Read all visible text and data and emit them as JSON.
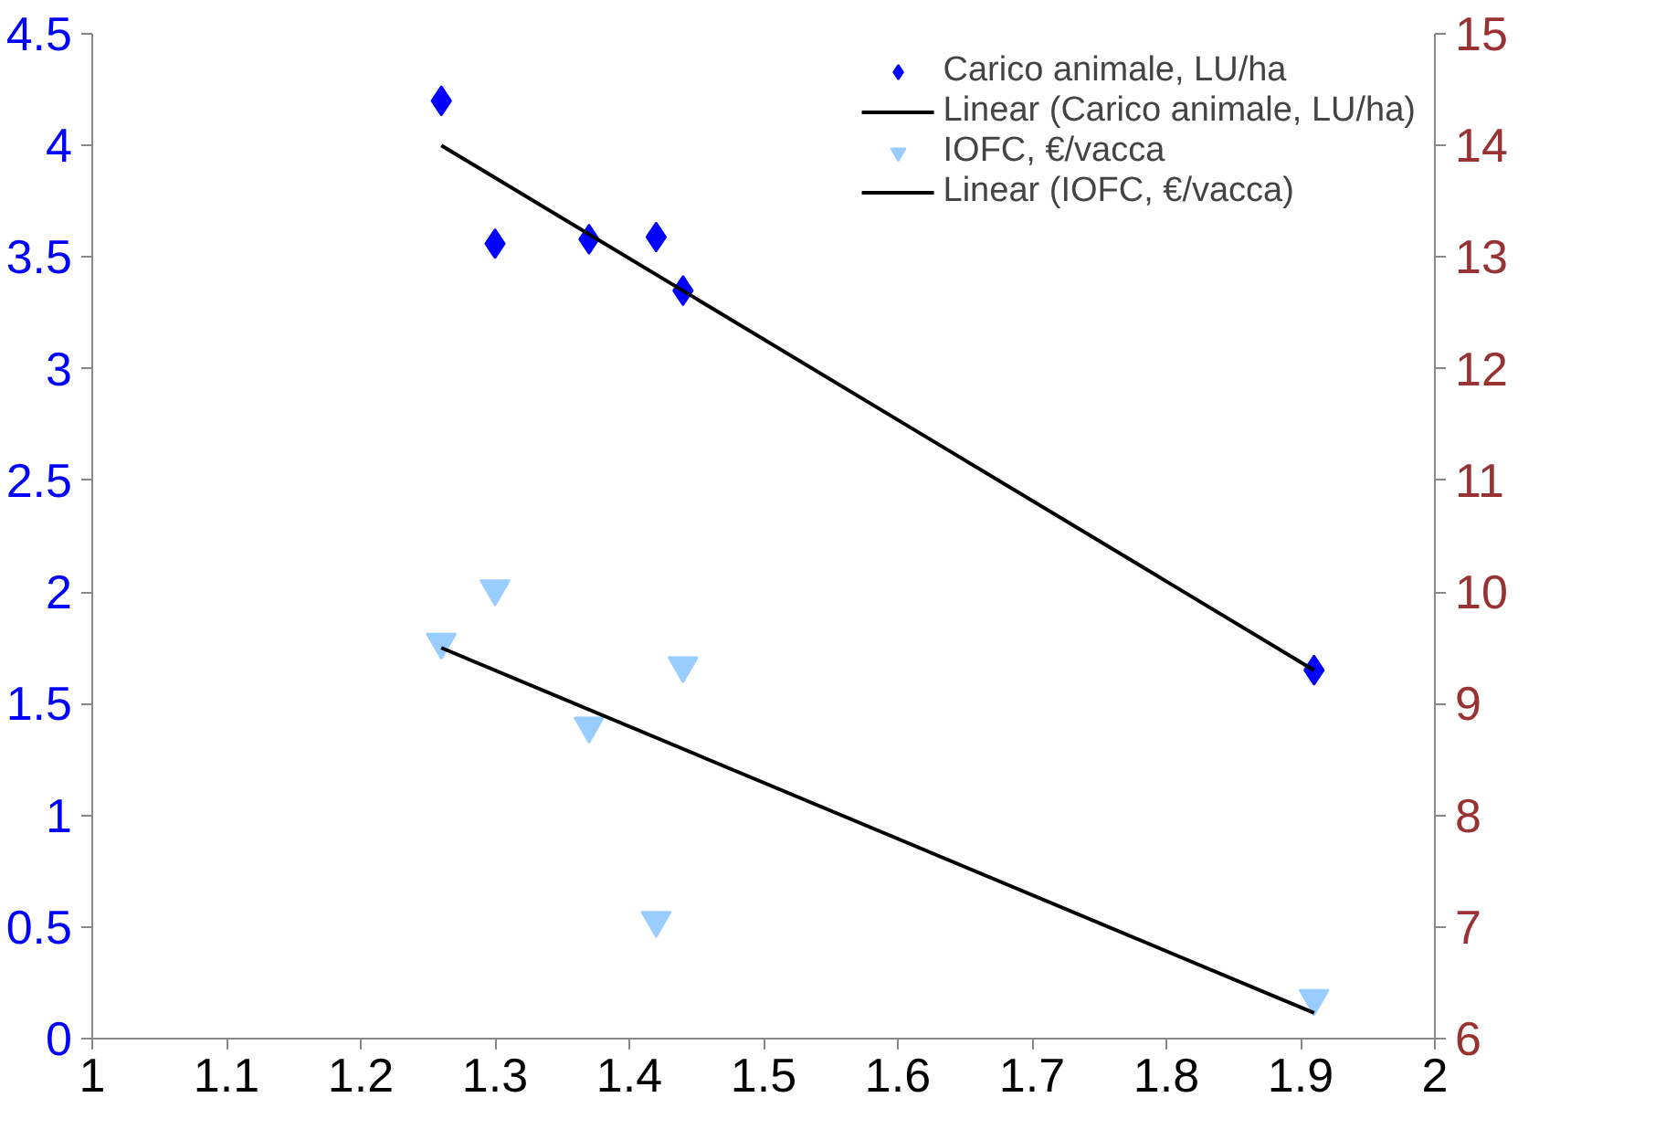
{
  "chart_data": {
    "type": "scatter",
    "xlim": [
      1,
      2
    ],
    "xticks": [
      1,
      1.1,
      1.2,
      1.3,
      1.4,
      1.5,
      1.6,
      1.7,
      1.8,
      1.9,
      2
    ],
    "ylim": [
      0,
      4.5
    ],
    "yticks": [
      0,
      0.5,
      1,
      1.5,
      2,
      2.5,
      3,
      3.5,
      4,
      4.5
    ],
    "y2lim": [
      6,
      15
    ],
    "y2ticks": [
      6,
      7,
      8,
      9,
      10,
      11,
      12,
      13,
      14,
      15
    ],
    "grid": false,
    "legend": "top right",
    "series": [
      {
        "name": "Carico animale, LU/ha",
        "marker": "diamond",
        "color": "#0000ff",
        "x": [
          1.26,
          1.3,
          1.37,
          1.42,
          1.44,
          1.91
        ],
        "values": [
          4.2,
          3.56,
          3.58,
          3.59,
          3.35,
          1.65
        ]
      },
      {
        "name": "Linear (Carico animale, LU/ha)",
        "type": "line",
        "color": "#000000",
        "x": [
          1.26,
          1.91
        ],
        "values": [
          4.0,
          1.65
        ]
      },
      {
        "name": "IOFC, €/vacca",
        "marker": "triangle",
        "axis": "y2",
        "color": "#99ccff",
        "x": [
          1.26,
          1.3,
          1.37,
          1.42,
          1.44,
          1.91
        ],
        "values": [
          9.55,
          10.03,
          8.8,
          7.06,
          9.34,
          6.36
        ]
      },
      {
        "name": "Linear (IOFC, €/vacca)",
        "type": "line",
        "axis": "y2",
        "color": "#000000",
        "x": [
          1.26,
          1.91
        ],
        "values": [
          9.5,
          6.23
        ]
      }
    ]
  }
}
